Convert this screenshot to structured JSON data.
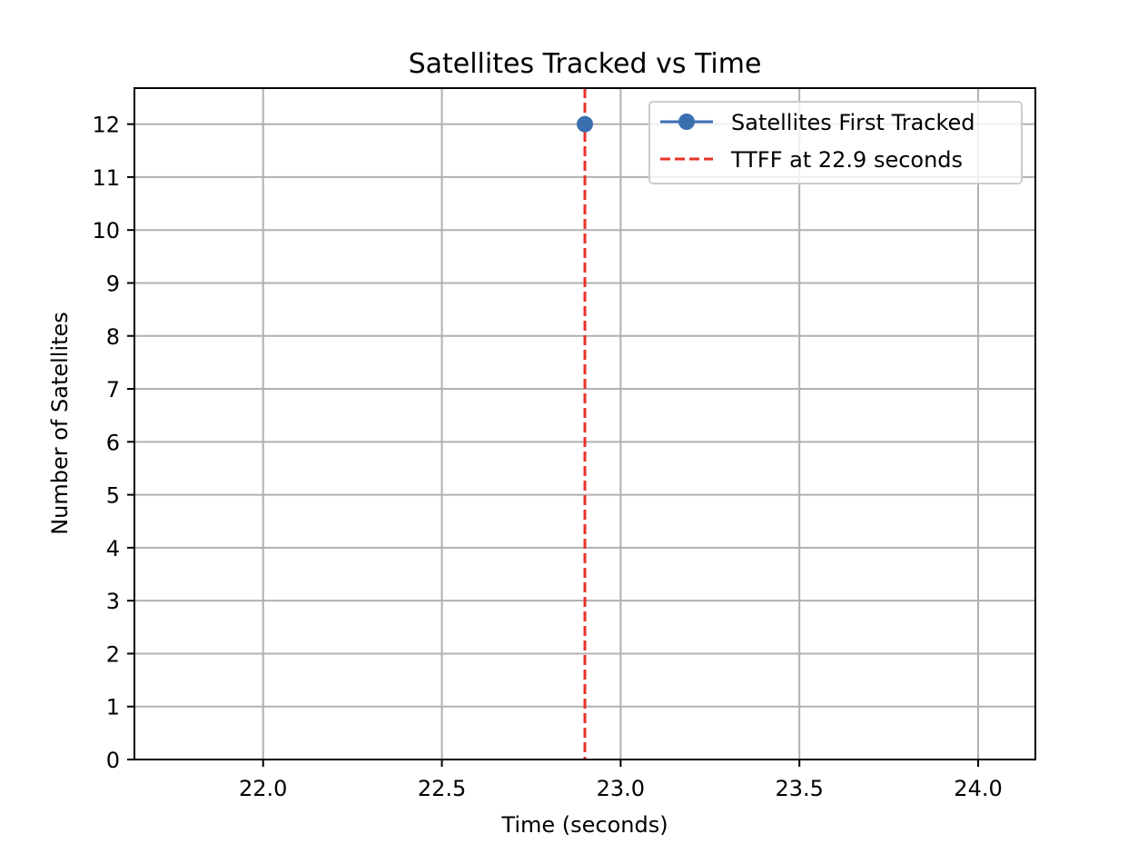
{
  "chart_data": {
    "type": "line",
    "title": "Satellites Tracked vs Time",
    "xlabel": "Time (seconds)",
    "ylabel": "Number of Satellites",
    "xlim": [
      21.64,
      24.16
    ],
    "ylim": [
      0,
      12.68
    ],
    "x_ticks": [
      22.0,
      22.5,
      23.0,
      23.5,
      24.0
    ],
    "x_tick_labels": [
      "22.0",
      "22.5",
      "23.0",
      "23.5",
      "24.0"
    ],
    "y_ticks": [
      0,
      1,
      2,
      3,
      4,
      5,
      6,
      7,
      8,
      9,
      10,
      11,
      12
    ],
    "y_tick_labels": [
      "0",
      "1",
      "2",
      "3",
      "4",
      "5",
      "6",
      "7",
      "8",
      "9",
      "10",
      "11",
      "12"
    ],
    "grid": true,
    "legend_position": "top-right",
    "series": [
      {
        "name": "Satellites First Tracked",
        "style": "line-marker",
        "color": "#3a6fb0",
        "x": [
          22.9
        ],
        "y": [
          12
        ]
      }
    ],
    "reference_lines": [
      {
        "name": "TTFF at 22.9 seconds",
        "orientation": "vertical",
        "x": 22.9,
        "style": "dashed",
        "color": "#e8322a"
      }
    ]
  }
}
